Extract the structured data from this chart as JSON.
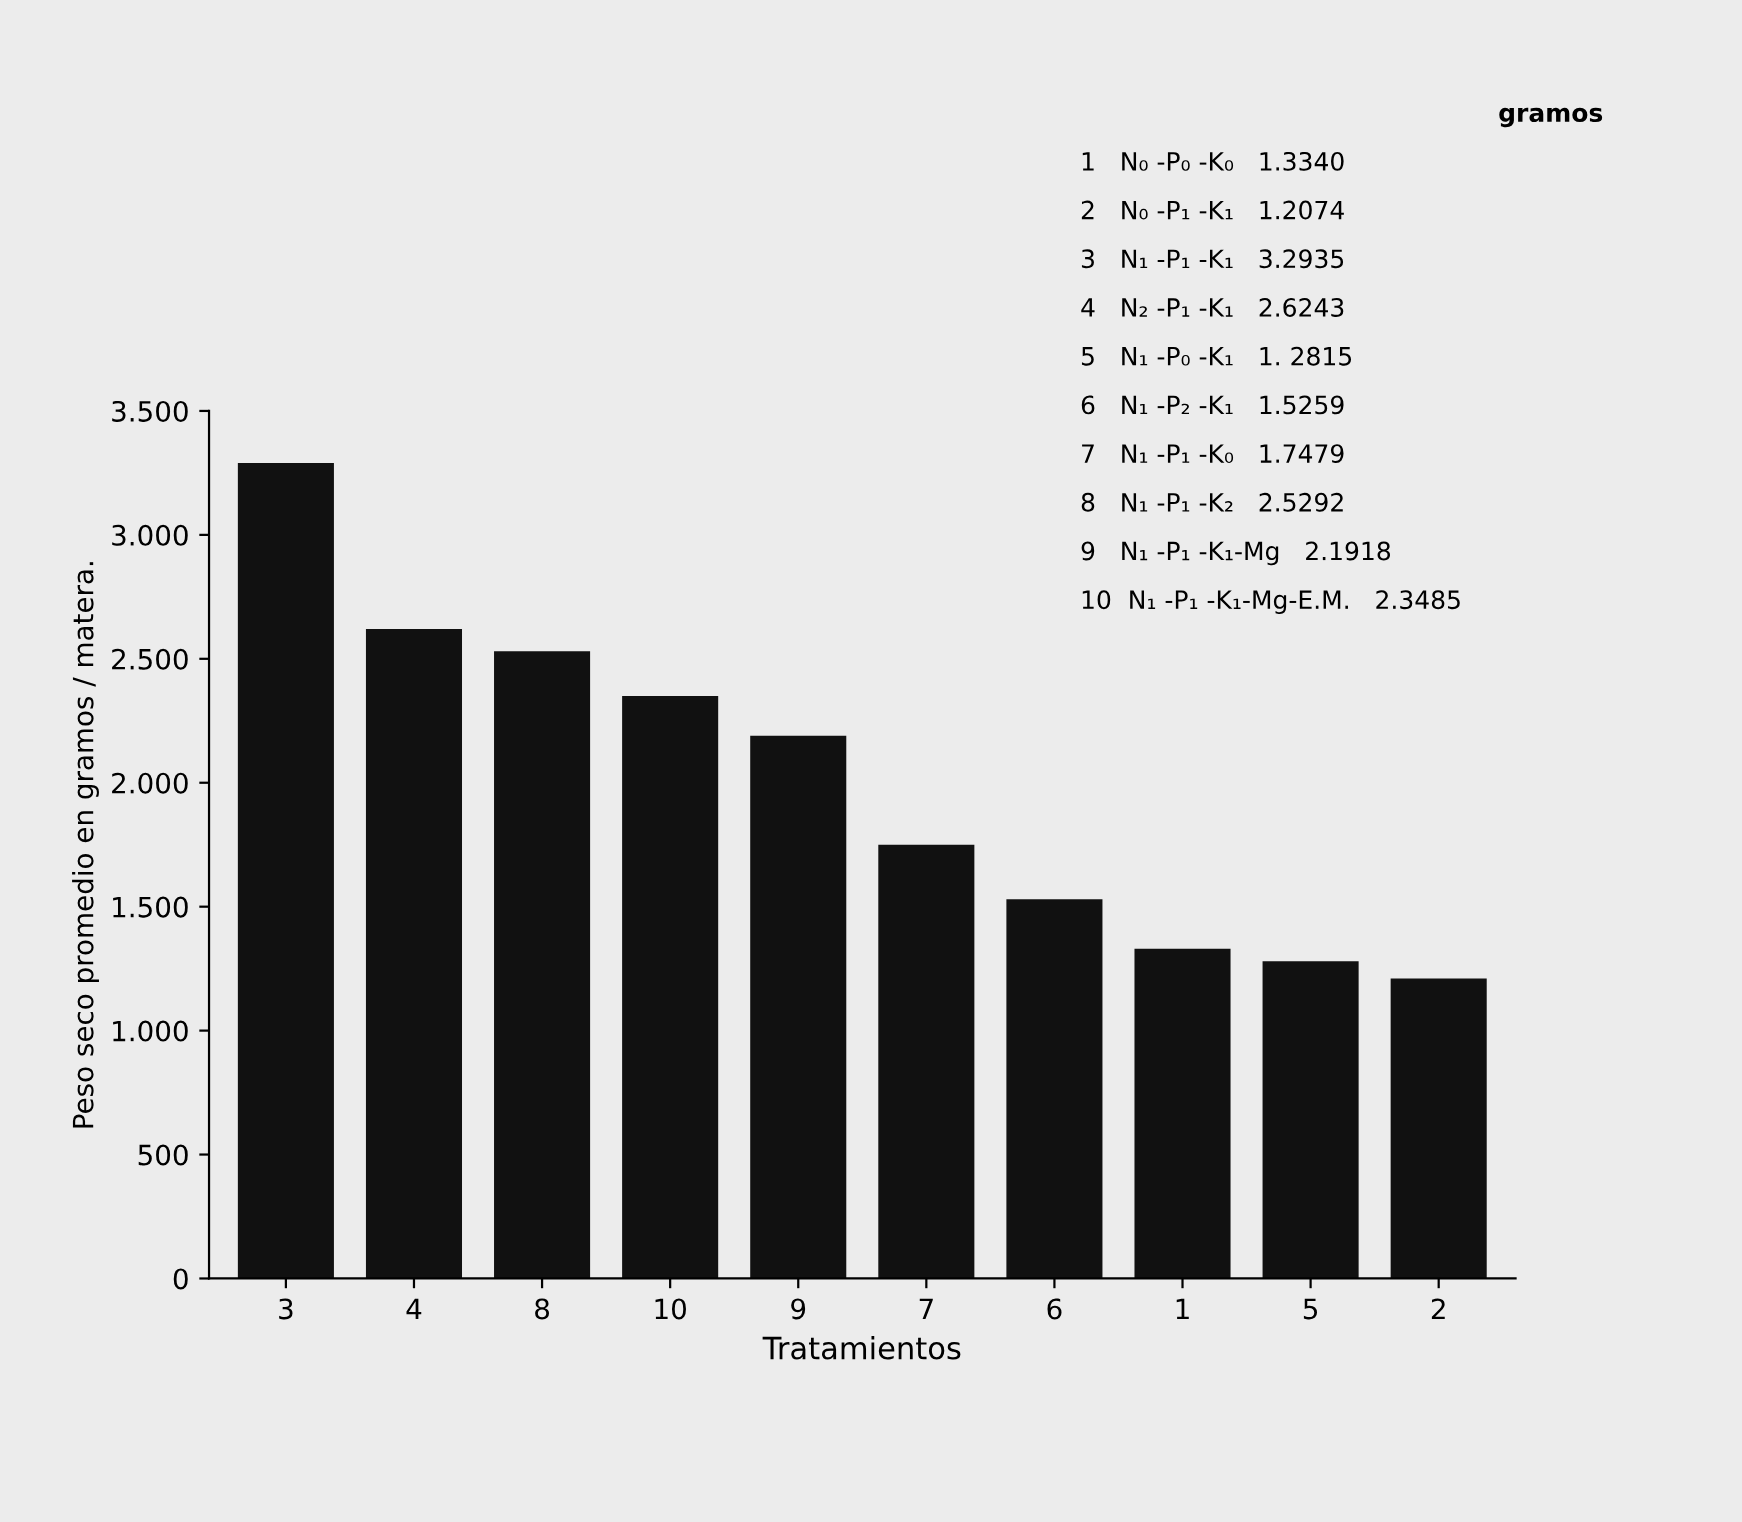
{
  "chart_data": {
    "type": "bar",
    "xlabel": "Tratamientos",
    "ylabel": "Peso seco promedio en gramos / matera.",
    "categories": [
      "3",
      "4",
      "8",
      "10",
      "9",
      "7",
      "6",
      "1",
      "5",
      "2"
    ],
    "values": [
      3290,
      2620,
      2530,
      2350,
      2190,
      1750,
      1530,
      1330,
      1280,
      1210
    ],
    "color": "#111111",
    "ylim": [
      0,
      3500
    ],
    "yticks": [
      0,
      500,
      {
        "value": 1000,
        "label": "1.000"
      },
      {
        "value": 1500,
        "label": "1.500"
      },
      {
        "value": 2000,
        "label": "2.000"
      },
      {
        "value": 2500,
        "label": "2.500"
      },
      {
        "value": 3000,
        "label": "3.000"
      },
      {
        "value": 3500,
        "label": "3.500"
      }
    ],
    "annotations": [
      "gramos",
      "1   N₀ -P₀ -K₀   1.3340",
      "2   N₀ -P₁ -K₁   1.2074",
      "3   N₁ -P₁ -K₁   3.2935",
      "4   N₂ -P₁ -K₁   2.6243",
      "5   N₁ -P₀ -K₁   1. 2815",
      "6   N₁ -P₂ -K₁   1.5259",
      "7   N₁ -P₁ -K₀   1.7479",
      "8   N₁ -P₁ -K₂   2.5292",
      "9   N₁ -P₁ -K₁-Mg   2.1918",
      "10  N₁ -P₁ -K₁-Mg-E.M.   2.3485"
    ],
    "grid": false,
    "legend": false
  }
}
